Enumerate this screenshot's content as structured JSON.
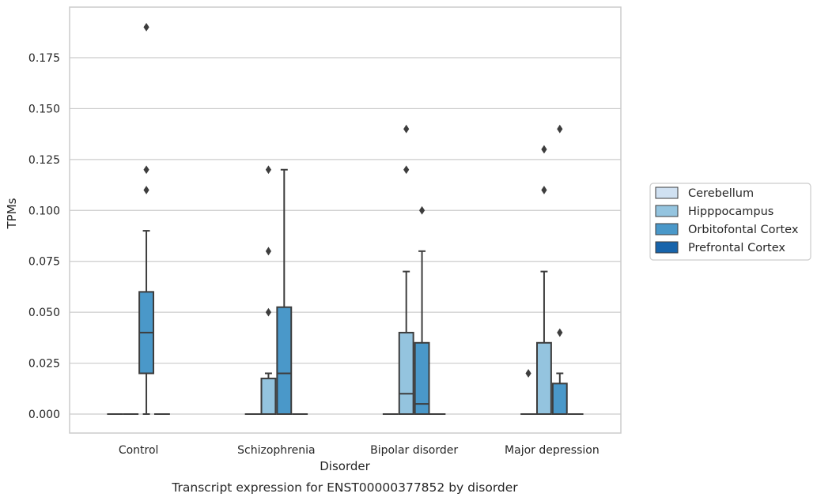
{
  "chart_data": {
    "type": "box",
    "caption": "Transcript expression for ENST00000377852 by disorder",
    "xlabel": "Disorder",
    "ylabel": "TPMs",
    "ylim": [
      -0.0092,
      0.197
    ],
    "yticks": [
      "0.000",
      "0.025",
      "0.050",
      "0.075",
      "0.100",
      "0.125",
      "0.150",
      "0.175"
    ],
    "ytick_values": [
      0,
      0.025,
      0.05,
      0.075,
      0.1,
      0.125,
      0.15,
      0.175
    ],
    "grid": "horizontal",
    "legend_position": "right",
    "categories": [
      "Control",
      "Schizophrenia",
      "Bipolar disorder",
      "Major depression"
    ],
    "series": [
      {
        "name": "Cerebellum",
        "color": "#d0e1f2",
        "boxes": [
          {
            "q1": 0,
            "median": 0,
            "q3": 0,
            "whislo": 0,
            "whishi": 0,
            "fliers": []
          },
          {
            "q1": 0,
            "median": 0,
            "q3": 0,
            "whislo": 0,
            "whishi": 0,
            "fliers": []
          },
          {
            "q1": 0,
            "median": 0,
            "q3": 0,
            "whislo": 0,
            "whishi": 0,
            "fliers": []
          },
          {
            "q1": 0,
            "median": 0,
            "q3": 0,
            "whislo": 0,
            "whishi": 0,
            "fliers": [
              0.02
            ]
          }
        ]
      },
      {
        "name": "Hipppocampus",
        "color": "#94c4df",
        "boxes": [
          {
            "q1": 0,
            "median": 0,
            "q3": 0,
            "whislo": 0,
            "whishi": 0,
            "fliers": []
          },
          {
            "q1": 0,
            "median": 0,
            "q3": 0.0175,
            "whislo": 0,
            "whishi": 0.02,
            "fliers": [
              0.05,
              0.08,
              0.12
            ]
          },
          {
            "q1": 0,
            "median": 0.01,
            "q3": 0.04,
            "whislo": 0,
            "whishi": 0.07,
            "fliers": [
              0.12,
              0.14
            ]
          },
          {
            "q1": 0,
            "median": 0,
            "q3": 0.035,
            "whislo": 0,
            "whishi": 0.07,
            "fliers": [
              0.11,
              0.13
            ]
          }
        ]
      },
      {
        "name": "Orbitofontal Cortex",
        "color": "#4a98c9",
        "boxes": [
          {
            "q1": 0.02,
            "median": 0.04,
            "q3": 0.06,
            "whislo": 0,
            "whishi": 0.09,
            "fliers": [
              0.11,
              0.12,
              0.19
            ]
          },
          {
            "q1": 0,
            "median": 0.02,
            "q3": 0.0525,
            "whislo": 0,
            "whishi": 0.12,
            "fliers": []
          },
          {
            "q1": 0,
            "median": 0.005,
            "q3": 0.035,
            "whislo": 0,
            "whishi": 0.08,
            "fliers": [
              0.1
            ]
          },
          {
            "q1": 0,
            "median": 0,
            "q3": 0.015,
            "whislo": 0,
            "whishi": 0.02,
            "fliers": [
              0.04,
              0.14
            ]
          }
        ]
      },
      {
        "name": "Prefrontal Cortex",
        "color": "#1764ab",
        "boxes": [
          {
            "q1": 0,
            "median": 0,
            "q3": 0,
            "whislo": 0,
            "whishi": 0,
            "fliers": []
          },
          {
            "q1": 0,
            "median": 0,
            "q3": 0,
            "whislo": 0,
            "whishi": 0,
            "fliers": []
          },
          {
            "q1": 0,
            "median": 0,
            "q3": 0,
            "whislo": 0,
            "whishi": 0,
            "fliers": []
          },
          {
            "q1": 0,
            "median": 0,
            "q3": 0,
            "whislo": 0,
            "whishi": 0,
            "fliers": []
          }
        ]
      }
    ]
  }
}
